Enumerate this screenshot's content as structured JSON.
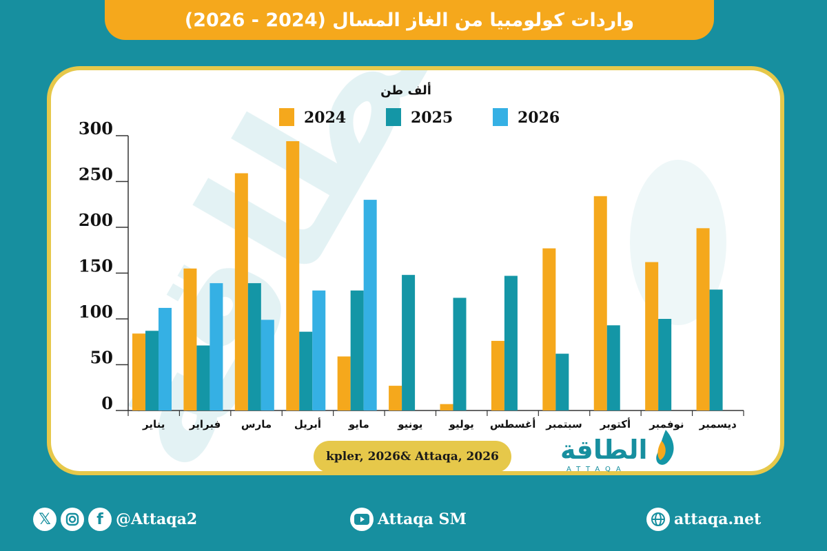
{
  "title": "واردات كولومبيا من الغاز المسال (2024 - 2026)",
  "source": "kpler, 2026& Attaqa, 2026",
  "logo": {
    "arabic": "الطاقة",
    "latin": "ATTAQA"
  },
  "footer": {
    "social_handle": "@Attaqa2",
    "youtube": "Attaqa SM",
    "website": "attaqa.net"
  },
  "colors": {
    "background": "#178f9f",
    "banner": "#f5a81c",
    "frame": "#e6c84a"
  },
  "chart_data": {
    "type": "bar",
    "unit_label": "ألف طن",
    "categories": [
      "يناير",
      "فبراير",
      "مارس",
      "أبريل",
      "مايو",
      "يونيو",
      "يوليو",
      "أغسطس",
      "سبتمبر",
      "أكتوبر",
      "نوفمبر",
      "ديسمبر"
    ],
    "series": [
      {
        "name": "2024",
        "color": "#f5a81c",
        "values": [
          84,
          155,
          259,
          294,
          59,
          27,
          7,
          76,
          177,
          234,
          162,
          199
        ]
      },
      {
        "name": "2025",
        "color": "#1496a6",
        "values": [
          87,
          71,
          139,
          86,
          131,
          148,
          123,
          147,
          62,
          93,
          100,
          132
        ]
      },
      {
        "name": "2026",
        "color": "#35b0e4",
        "values": [
          112,
          139,
          99,
          131,
          230,
          null,
          null,
          null,
          null,
          null,
          null,
          null
        ]
      }
    ],
    "ylim": [
      0,
      300
    ],
    "yticks": [
      0,
      50,
      100,
      150,
      200,
      250,
      300
    ],
    "legend_position": "top"
  }
}
